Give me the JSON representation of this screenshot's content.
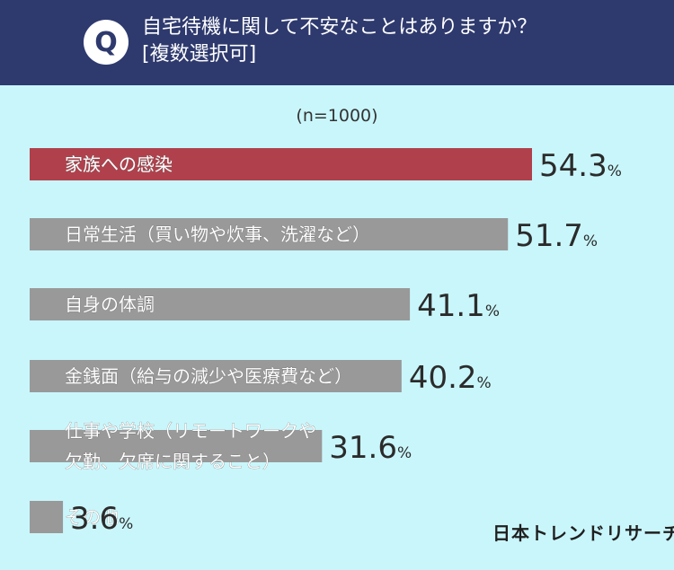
{
  "header": {
    "badge": "Q",
    "question_line1": "自宅待機に関して不安なことはありますか？",
    "question_line2": "[複数選択可]"
  },
  "sample_label": "(n=1000)",
  "brand": "日本トレンドリサーチ",
  "colors": {
    "header_bg": "#2e3a6e",
    "background": "#c9f6fb",
    "highlight_bar": "#b0414c",
    "default_bar": "#999999"
  },
  "chart_data": {
    "type": "bar",
    "orientation": "horizontal",
    "categories": [
      [
        "家族への感染"
      ],
      [
        "日常生活（買い物や炊事、洗濯など）"
      ],
      [
        "自身の体調"
      ],
      [
        "金銭面（給与の減少や医療費など）"
      ],
      [
        "仕事や学校（リモートワークや",
        "欠勤、欠席に関すること）"
      ],
      [
        "その他"
      ]
    ],
    "values": [
      54.3,
      51.7,
      41.1,
      40.2,
      31.6,
      3.6
    ],
    "unit": "%",
    "highlight_index": 0,
    "xlim": [
      0,
      100
    ]
  }
}
